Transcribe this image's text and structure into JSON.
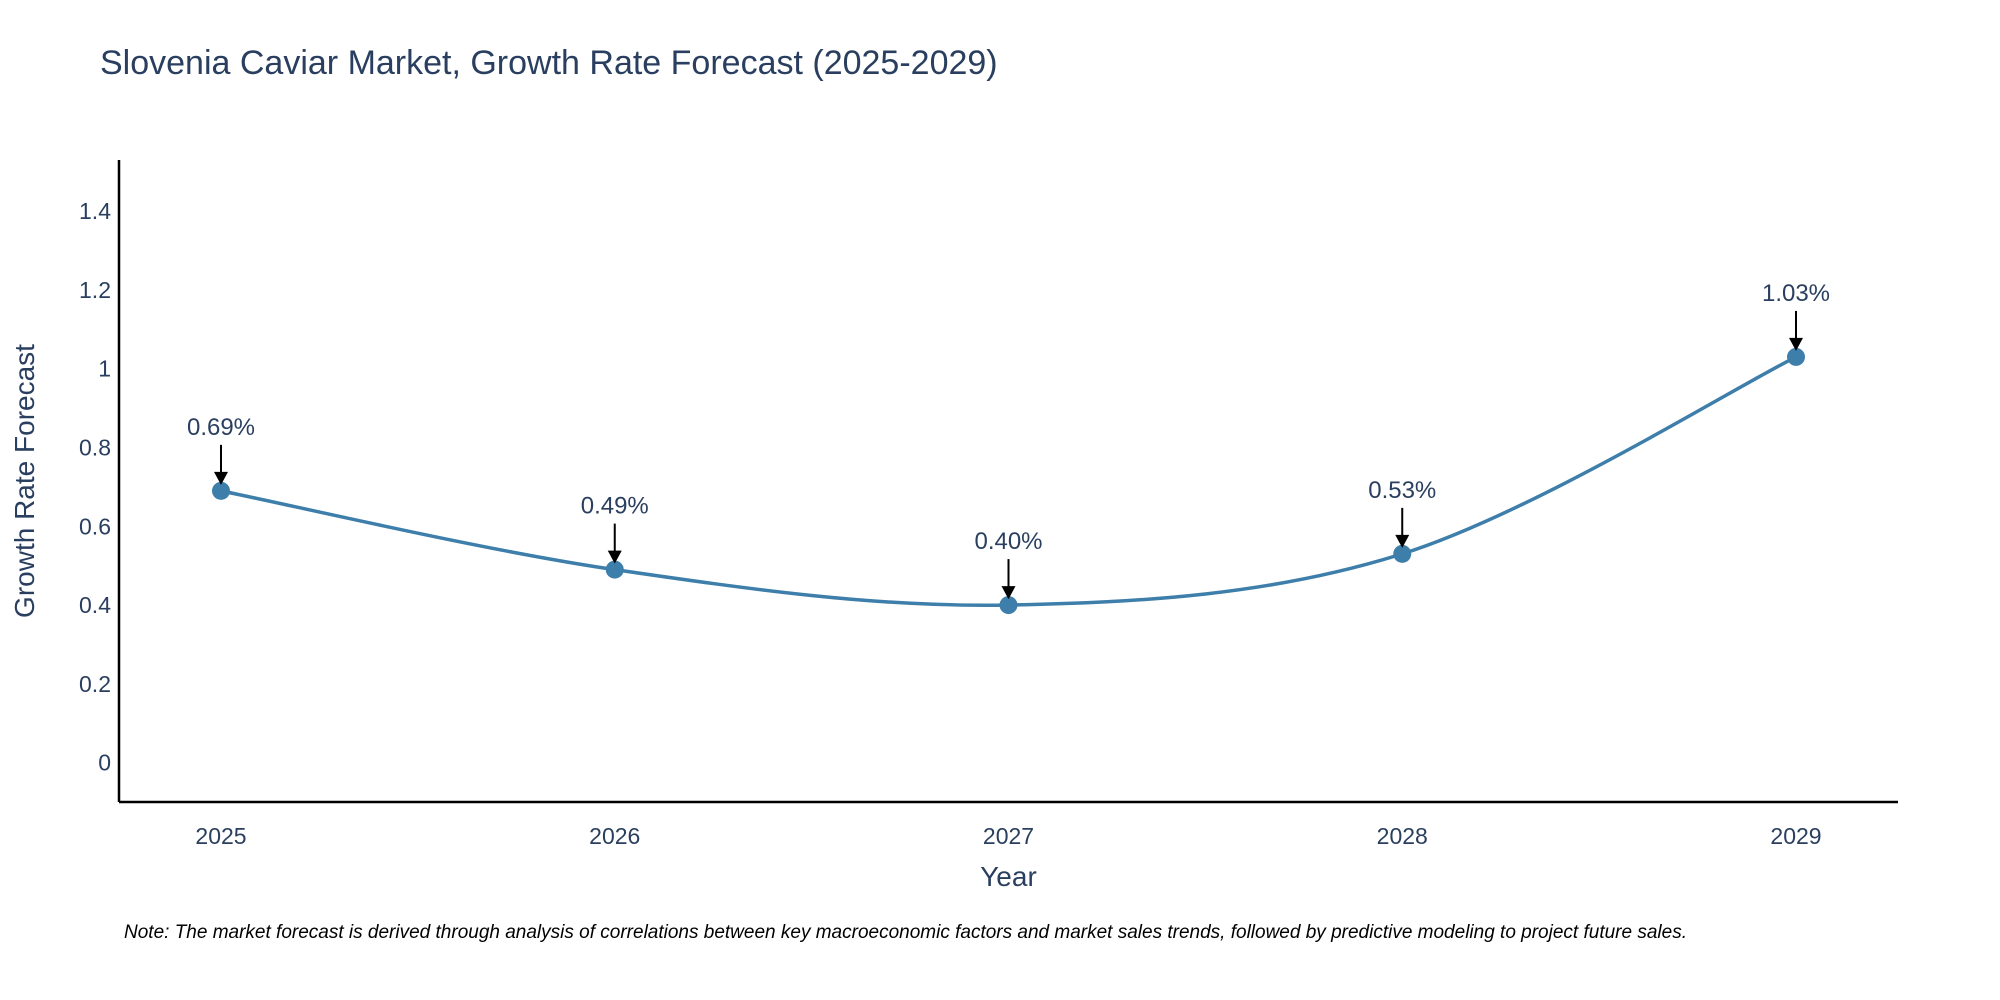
{
  "chart_data": {
    "type": "line",
    "title": "Slovenia Caviar Market, Growth Rate Forecast (2025-2029)",
    "xlabel": "Year",
    "ylabel": "Growth Rate Forecast",
    "categories": [
      "2025",
      "2026",
      "2027",
      "2028",
      "2029"
    ],
    "series": [
      {
        "name": "Growth Rate Forecast",
        "values": [
          0.69,
          0.49,
          0.4,
          0.53,
          1.03
        ],
        "labels": [
          "0.69%",
          "0.49%",
          "0.40%",
          "0.53%",
          "1.03%"
        ]
      }
    ],
    "ylim": [
      -0.1,
      1.53
    ],
    "yticks": [
      0,
      0.2,
      0.4,
      0.6,
      0.8,
      1,
      1.2,
      1.4
    ],
    "ytick_labels": [
      "0",
      "0.2",
      "0.4",
      "0.6",
      "0.8",
      "1",
      "1.2",
      "1.4"
    ],
    "grid": false,
    "line_color": "#3d7eaa",
    "marker_color": "#3d7eaa",
    "arrow_color": "#000000",
    "note": "Note: The market forecast is derived through analysis of correlations between key macroeconomic factors and market sales trends, followed by predictive modeling to project future sales."
  }
}
